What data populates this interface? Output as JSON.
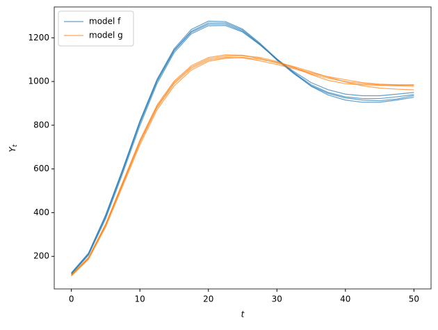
{
  "chart_data": {
    "type": "line",
    "xlabel": "t",
    "ylabel": "Y",
    "ylabel_subscript": "t",
    "x": [
      0,
      2.5,
      5,
      7.5,
      10,
      12.5,
      15,
      17.5,
      20,
      22.5,
      25,
      27.5,
      30,
      32.5,
      35,
      37.5,
      40,
      42.5,
      45,
      47.5,
      50
    ],
    "series": [
      {
        "name": "model f",
        "color": "#1f77b4",
        "runs": [
          [
            120,
            210,
            380,
            590,
            810,
            1000,
            1140,
            1225,
            1262,
            1262,
            1230,
            1170,
            1100,
            1040,
            985,
            950,
            930,
            922,
            922,
            930,
            940
          ],
          [
            125,
            215,
            390,
            600,
            820,
            1010,
            1150,
            1238,
            1276,
            1274,
            1240,
            1176,
            1104,
            1038,
            978,
            938,
            915,
            905,
            905,
            915,
            928
          ],
          [
            118,
            205,
            372,
            580,
            798,
            990,
            1132,
            1218,
            1255,
            1256,
            1226,
            1168,
            1102,
            1045,
            995,
            962,
            942,
            935,
            935,
            942,
            950
          ],
          [
            122,
            212,
            385,
            595,
            815,
            1004,
            1144,
            1230,
            1268,
            1268,
            1235,
            1172,
            1098,
            1035,
            980,
            945,
            925,
            915,
            912,
            920,
            935
          ]
        ]
      },
      {
        "name": "model g",
        "color": "#ff7f0e",
        "runs": [
          [
            112,
            190,
            340,
            530,
            720,
            880,
            990,
            1060,
            1098,
            1110,
            1108,
            1095,
            1078,
            1058,
            1035,
            1015,
            1000,
            990,
            985,
            983,
            983
          ],
          [
            115,
            195,
            348,
            540,
            732,
            892,
            1002,
            1072,
            1110,
            1122,
            1120,
            1105,
            1085,
            1062,
            1040,
            1022,
            1008,
            995,
            988,
            985,
            985
          ],
          [
            110,
            186,
            334,
            522,
            710,
            870,
            980,
            1052,
            1092,
            1106,
            1110,
            1102,
            1088,
            1068,
            1045,
            1020,
            998,
            980,
            970,
            965,
            962
          ],
          [
            114,
            192,
            344,
            536,
            726,
            886,
            996,
            1066,
            1104,
            1116,
            1118,
            1110,
            1092,
            1065,
            1032,
            1005,
            990,
            985,
            982,
            980,
            978
          ]
        ]
      }
    ],
    "xlim": [
      -2.5,
      52.5
    ],
    "ylim": [
      51,
      1341
    ],
    "xticks": [
      0,
      10,
      20,
      30,
      40,
      50
    ],
    "yticks": [
      200,
      400,
      600,
      800,
      1000,
      1200
    ],
    "legend": "upper left"
  }
}
